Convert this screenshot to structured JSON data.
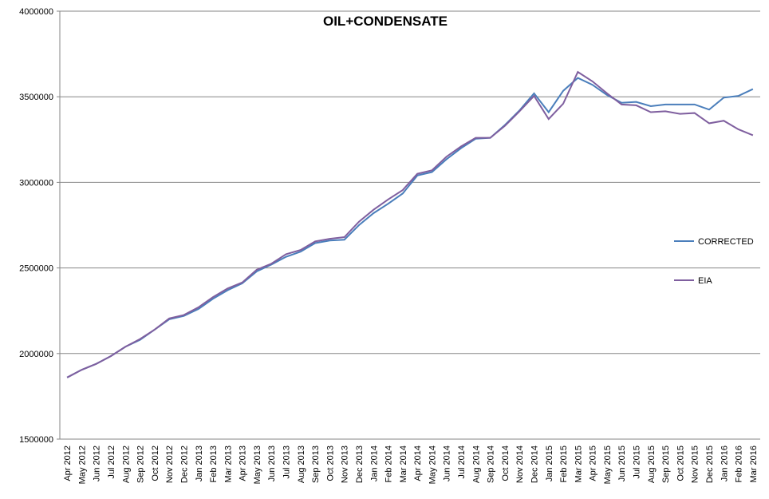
{
  "chart_data": {
    "type": "line",
    "title": "OIL+CONDENSATE",
    "categories": [
      "Apr 2012",
      "May 2012",
      "Jun 2012",
      "Jul 2012",
      "Aug 2012",
      "Sep 2012",
      "Oct 2012",
      "Nov 2012",
      "Dec 2012",
      "Jan 2013",
      "Feb 2013",
      "Mar 2013",
      "Apr 2013",
      "May 2013",
      "Jun 2013",
      "Jul 2013",
      "Aug 2013",
      "Sep 2013",
      "Oct 2013",
      "Nov 2013",
      "Dec 2013",
      "Jan 2014",
      "Feb 2014",
      "Mar 2014",
      "Apr 2014",
      "May 2014",
      "Jun 2014",
      "Jul 2014",
      "Aug 2014",
      "Sep 2014",
      "Oct 2014",
      "Nov 2014",
      "Dec 2014",
      "Jan 2015",
      "Feb 2015",
      "Mar 2015",
      "Apr 2015",
      "May 2015",
      "Jun 2015",
      "Jul 2015",
      "Aug 2015",
      "Sep 2015",
      "Oct 2015",
      "Nov 2015",
      "Dec 2015",
      "Jan 2016",
      "Feb 2016",
      "Mar 2016"
    ],
    "series": [
      {
        "name": "CORRECTED",
        "color": "#4a7ebb",
        "values": [
          1860000,
          1905000,
          1940000,
          1985000,
          2040000,
          2080000,
          2140000,
          2200000,
          2220000,
          2260000,
          2320000,
          2370000,
          2410000,
          2480000,
          2520000,
          2565000,
          2595000,
          2645000,
          2660000,
          2665000,
          2750000,
          2820000,
          2875000,
          2935000,
          3040000,
          3060000,
          3135000,
          3200000,
          3255000,
          3260000,
          3335000,
          3420000,
          3520000,
          3410000,
          3535000,
          3610000,
          3570000,
          3510000,
          3465000,
          3470000,
          3445000,
          3455000,
          3455000,
          3455000,
          3425000,
          3495000,
          3505000,
          3545000
        ]
      },
      {
        "name": "EIA",
        "color": "#7f5f9f",
        "values": [
          1860000,
          1905000,
          1940000,
          1985000,
          2040000,
          2085000,
          2140000,
          2205000,
          2225000,
          2270000,
          2330000,
          2380000,
          2415000,
          2490000,
          2525000,
          2580000,
          2605000,
          2655000,
          2670000,
          2680000,
          2770000,
          2840000,
          2900000,
          2955000,
          3050000,
          3070000,
          3150000,
          3210000,
          3260000,
          3260000,
          3330000,
          3415000,
          3505000,
          3370000,
          3460000,
          3645000,
          3590000,
          3520000,
          3455000,
          3450000,
          3410000,
          3415000,
          3400000,
          3405000,
          3345000,
          3360000,
          3310000,
          3275000
        ]
      }
    ],
    "ylim": [
      1500000,
      4000000
    ],
    "yticks": [
      1500000,
      2000000,
      2500000,
      3000000,
      3500000,
      4000000
    ],
    "grid": true,
    "legend": "right"
  }
}
